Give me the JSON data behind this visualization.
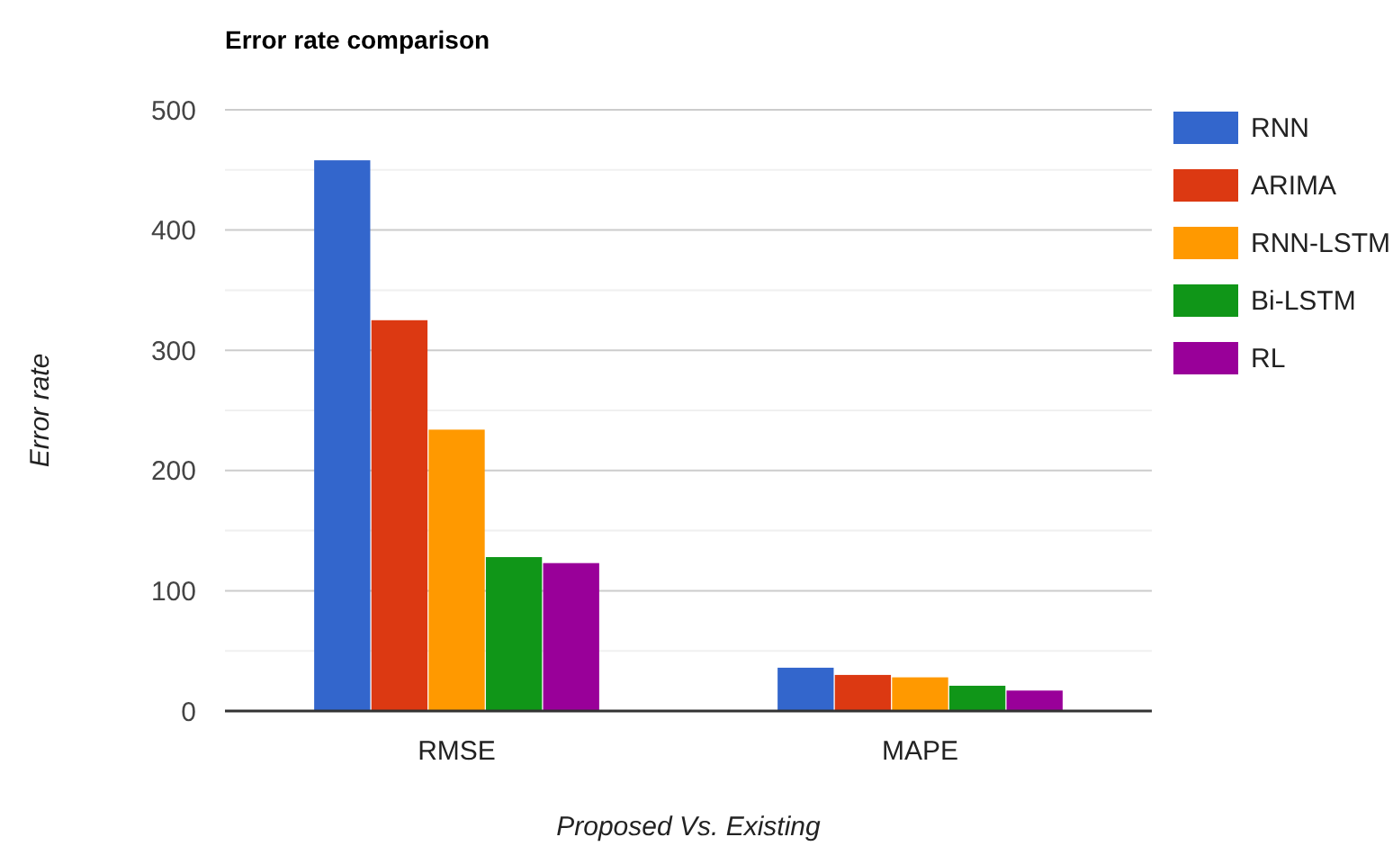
{
  "chart_data": {
    "type": "bar",
    "title": "Error rate comparison",
    "xlabel": "Proposed Vs. Existing",
    "ylabel": "Error rate",
    "categories": [
      "RMSE",
      "MAPE"
    ],
    "series": [
      {
        "name": "RNN",
        "color": "#3366cc",
        "values": [
          458,
          36
        ]
      },
      {
        "name": "ARIMA",
        "color": "#dc3912",
        "values": [
          325,
          30
        ]
      },
      {
        "name": "RNN-LSTM",
        "color": "#ff9900",
        "values": [
          234,
          28
        ]
      },
      {
        "name": "Bi-LSTM",
        "color": "#109618",
        "values": [
          128,
          21
        ]
      },
      {
        "name": "RL",
        "color": "#990099",
        "values": [
          123,
          17
        ]
      }
    ],
    "ylim": [
      0,
      500
    ],
    "yticks": [
      0,
      {
        "value": 50,
        "label": null
      },
      100,
      {
        "value": 150,
        "label": null
      },
      200,
      {
        "value": 250,
        "label": null
      },
      300,
      {
        "value": 350,
        "label": null
      },
      400,
      {
        "value": 450,
        "label": null
      },
      500
    ],
    "grid": true,
    "legend": "right"
  }
}
